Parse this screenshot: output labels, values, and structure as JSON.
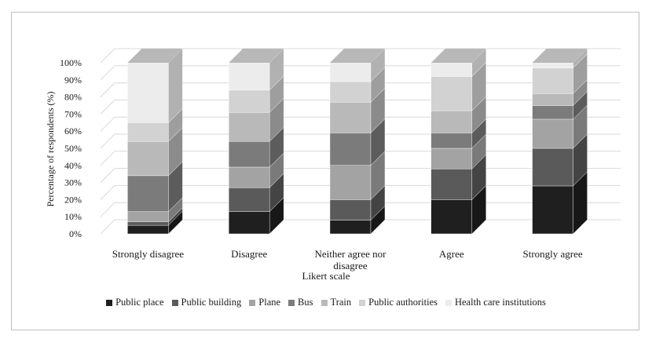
{
  "chart_data": {
    "type": "bar",
    "stacked": true,
    "three_d": true,
    "xlabel": "Likert scale",
    "ylabel": "Percentage  of respondents (%)",
    "ylim": [
      0,
      100
    ],
    "y_ticks": [
      "0%",
      "10%",
      "20%",
      "30%",
      "40%",
      "50%",
      "60%",
      "70%",
      "80%",
      "90%",
      "100%"
    ],
    "categories": [
      "Strongly disagree",
      "Disagree",
      "Neither agree nor disagree",
      "Agree",
      "Strongly agree"
    ],
    "category_label_lines": [
      [
        "Strongly disagree"
      ],
      [
        "Disagree"
      ],
      [
        "Neither agree nor",
        "disagree"
      ],
      [
        "Agree"
      ],
      [
        "Strongly agree"
      ]
    ],
    "legend_position": "bottom",
    "grid": true,
    "series": [
      {
        "name": "Public place",
        "color": "#1f1f1f",
        "values": [
          5,
          13,
          8,
          20,
          28
        ]
      },
      {
        "name": "Public building",
        "color": "#5a5a5a",
        "values": [
          2,
          14,
          12,
          18,
          22
        ]
      },
      {
        "name": "Plane",
        "color": "#a3a3a3",
        "values": [
          6,
          12,
          20,
          12,
          17
        ]
      },
      {
        "name": "Bus",
        "color": "#7b7b7b",
        "values": [
          21,
          15,
          19,
          9,
          8
        ]
      },
      {
        "name": "Train",
        "color": "#b9b9b9",
        "values": [
          20,
          17,
          18,
          13,
          7
        ]
      },
      {
        "name": "Public authorities",
        "color": "#d2d2d2",
        "values": [
          11,
          13,
          12,
          20,
          15
        ]
      },
      {
        "name": "Health care institutions",
        "color": "#ececec",
        "values": [
          35,
          16,
          11,
          8,
          3
        ]
      }
    ]
  }
}
